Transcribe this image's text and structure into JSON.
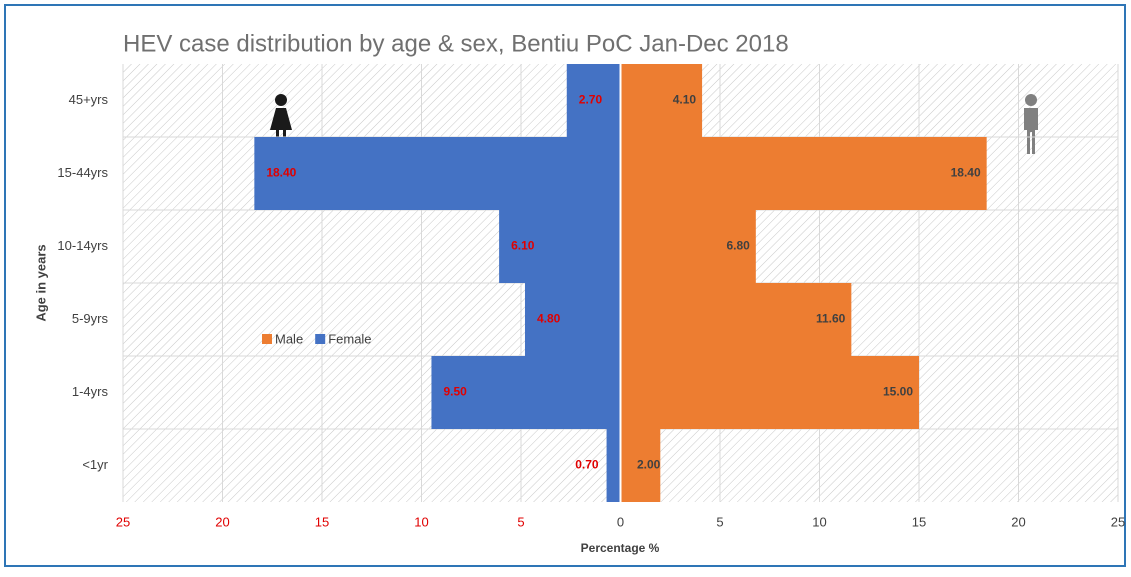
{
  "chart_data": {
    "type": "pyramid",
    "title": "HEV case distribution by age & sex, Bentiu PoC Jan-Dec  2018",
    "x_label": "Percentage %",
    "y_label": "Age in years",
    "categories": [
      "45+yrs",
      "15-44yrs",
      "10-14yrs",
      "5-9yrs",
      "1-4yrs",
      "<1yr"
    ],
    "series": [
      {
        "name": "Male",
        "color": "#ed7d31",
        "label_color": "#404040",
        "values": [
          4.1,
          18.4,
          6.8,
          11.6,
          15.0,
          2.0
        ],
        "value_labels": [
          "4.10",
          "18.40",
          "6.80",
          "11.60",
          "15.00",
          "2.00"
        ]
      },
      {
        "name": "Female",
        "color": "#4472c4",
        "label_color": "#e00000",
        "values": [
          -2.7,
          -18.4,
          -6.1,
          -4.8,
          -9.5,
          -0.7
        ],
        "value_labels": [
          "2.70",
          "18.40",
          "6.10",
          "4.80",
          "9.50",
          "0.70"
        ]
      }
    ],
    "xlim": [
      -25,
      25
    ],
    "xticks": [
      {
        "value": -25,
        "label": "25"
      },
      {
        "value": -20,
        "label": "20"
      },
      {
        "value": -15,
        "label": "15"
      },
      {
        "value": -10,
        "label": "10"
      },
      {
        "value": -5,
        "label": "5"
      },
      0,
      5,
      10,
      15,
      20,
      25
    ],
    "legend": "left",
    "grid": true
  }
}
